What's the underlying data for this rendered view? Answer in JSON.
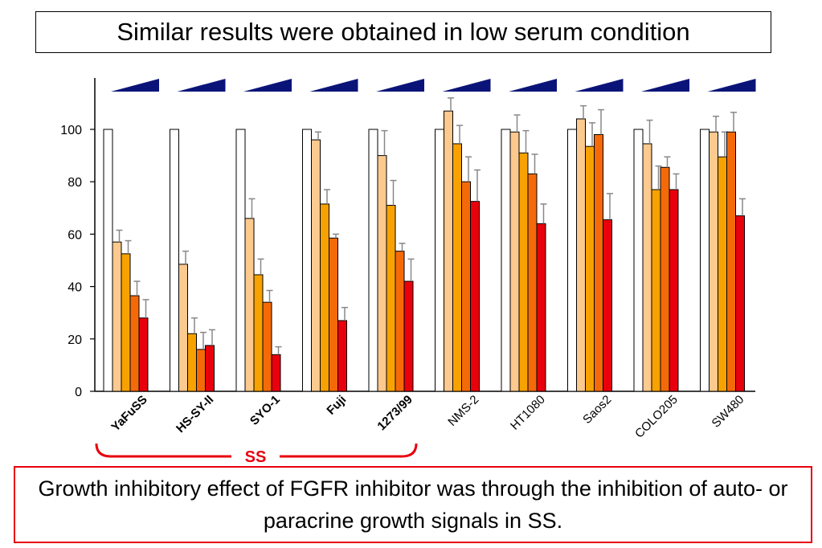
{
  "title": "Similar results were obtained in low serum condition",
  "caption": "Growth inhibitory effect of FGFR inhibitor was through the inhibition of auto- or paracrine growth signals in SS.",
  "colors": {
    "series": [
      "#ffffff",
      "#fcc98e",
      "#f7a200",
      "#f56a08",
      "#e8000d"
    ],
    "errorbar": "#888888",
    "wedge": "#0a1478",
    "bracket": "#e8000d"
  },
  "chart_data": {
    "type": "bar",
    "title": "Similar results were obtained in low serum condition",
    "xlabel": "",
    "ylabel": "",
    "ylim": [
      0,
      115
    ],
    "yticks": [
      0,
      20,
      40,
      60,
      80,
      100
    ],
    "grid": false,
    "categories": [
      "YaFuSS",
      "HS-SY-II",
      "SYO-1",
      "Fuji",
      "1273/99",
      "NMS-2",
      "HT1080",
      "Saos2",
      "COLO205",
      "SW480"
    ],
    "bold_categories": [
      "YaFuSS",
      "HS-SY-II",
      "SYO-1",
      "Fuji",
      "1273/99"
    ],
    "group_label": "SS",
    "series": [
      {
        "values": [
          100,
          100,
          100,
          100,
          100,
          100,
          100,
          100,
          100,
          100
        ],
        "errors": [
          0,
          0,
          0,
          0,
          0,
          0,
          0,
          0,
          0,
          0
        ]
      },
      {
        "values": [
          57,
          48.5,
          66,
          96,
          90,
          107,
          99,
          104,
          94.5,
          99
        ],
        "errors": [
          4.5,
          5,
          7.5,
          3,
          9.5,
          5,
          6.5,
          5,
          9,
          6
        ]
      },
      {
        "values": [
          52.5,
          22,
          44.5,
          71.5,
          71,
          94.5,
          91,
          93.5,
          77,
          89.5
        ],
        "errors": [
          5,
          6,
          6,
          5.5,
          9.5,
          7,
          8.5,
          9,
          9,
          9.5
        ]
      },
      {
        "values": [
          36.5,
          16,
          34,
          58.5,
          53.5,
          80,
          83,
          98,
          85.5,
          99
        ],
        "errors": [
          5.5,
          6.5,
          4.5,
          1.5,
          3,
          9.5,
          7.5,
          9.5,
          4,
          7.5
        ]
      },
      {
        "values": [
          28,
          17.5,
          14,
          27,
          42,
          72.5,
          64,
          65.5,
          77,
          67
        ],
        "errors": [
          7,
          6,
          3,
          5,
          8.5,
          12,
          7.5,
          10,
          6,
          6.5
        ]
      }
    ]
  }
}
